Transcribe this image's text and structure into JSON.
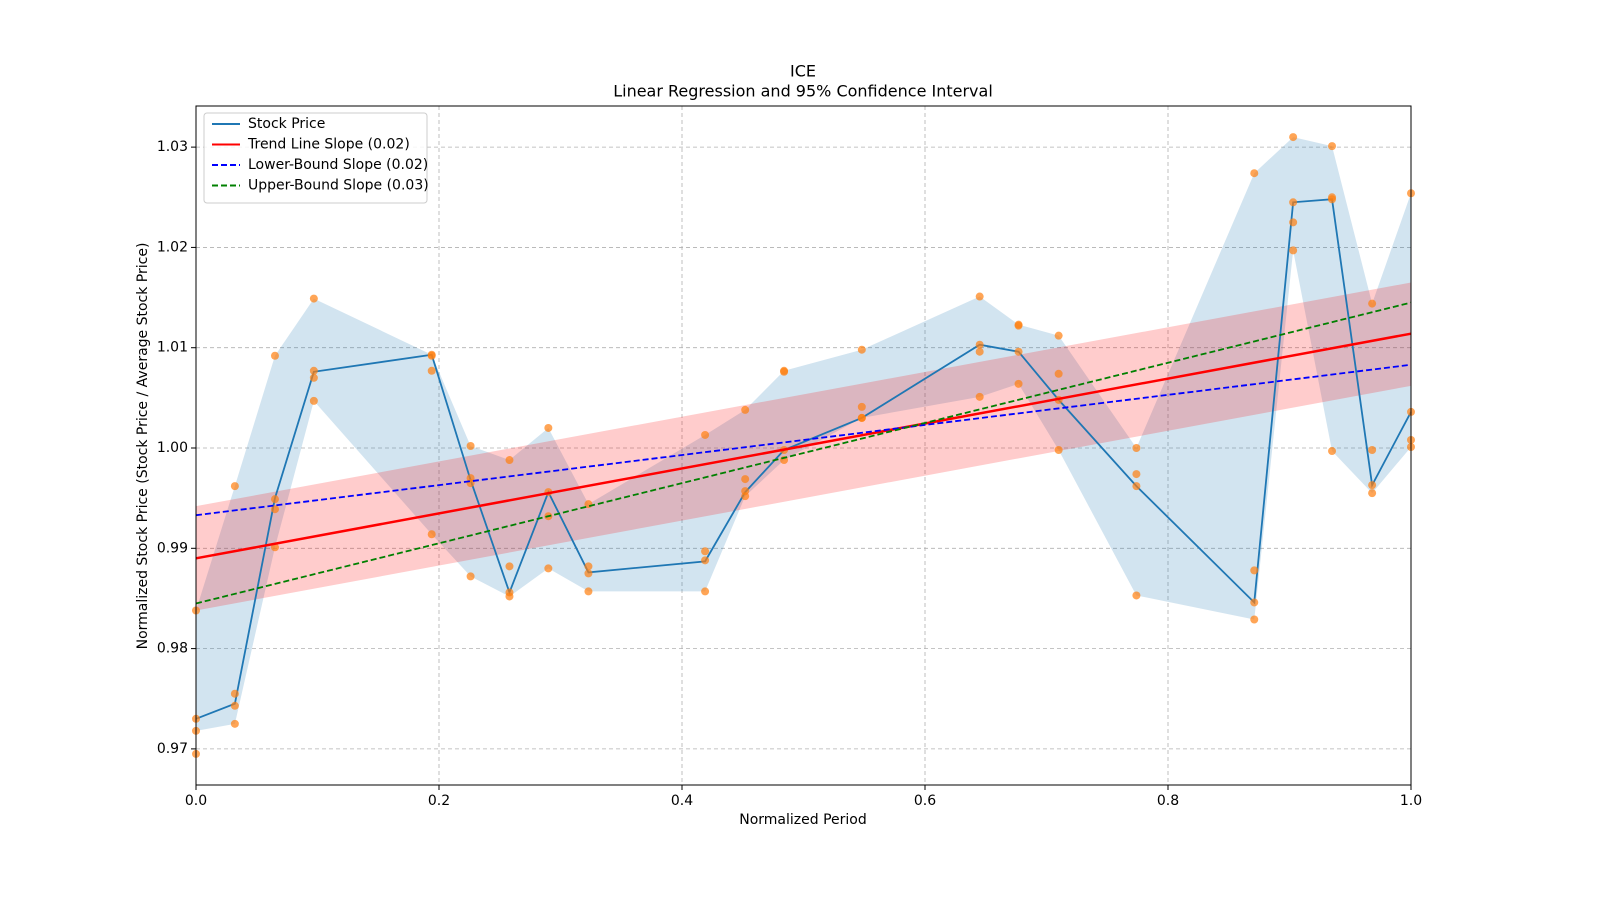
{
  "chart_data": {
    "type": "line",
    "title": "ICE",
    "subtitle": "Linear Regression and 95% Confidence Interval",
    "x_label": "Normalized Period",
    "y_label": "Normalized Stock Price (Stock Price / Average Stock Price)",
    "xlim": [
      0,
      1
    ],
    "ylim": [
      0.9664,
      1.0341
    ],
    "xticks": [
      {
        "value": 0,
        "label": "0.0"
      },
      0.2,
      0.4,
      0.6,
      0.8,
      {
        "value": 1,
        "label": "1.0"
      }
    ],
    "yticks": [
      0.97,
      0.98,
      0.99,
      {
        "value": 1.0,
        "label": "1.00"
      },
      1.01,
      1.02,
      1.03
    ],
    "grid": true,
    "legend": "upper left",
    "series": [
      {
        "name": "Stock Price",
        "color": "#1f77b4",
        "dash": false,
        "x": [
          0,
          0.032,
          0.065,
          0.097,
          0.194,
          0.226,
          0.258,
          0.29,
          0.323,
          0.419,
          0.452,
          0.484,
          0.548,
          0.645,
          0.677,
          0.71,
          0.774,
          0.871,
          0.903,
          0.935,
          0.968,
          1
        ],
        "values": [
          0.973,
          0.9745,
          0.995,
          1.0076,
          1.0093,
          0.9968,
          0.9856,
          0.9956,
          0.9876,
          0.9887,
          0.9956,
          0.9998,
          1.003,
          1.0103,
          1.0096,
          1.0048,
          0.9962,
          0.9846,
          1.0245,
          1.0248,
          0.9963,
          1.0036
        ],
        "upper": [
          0.9838,
          0.9962,
          1.0092,
          1.0149,
          1.0093,
          1.0002,
          0.9988,
          1.002,
          0.9944,
          1.0013,
          1.0038,
          1.0077,
          1.0098,
          1.0151,
          1.0123,
          1.0112,
          1.0,
          1.0274,
          1.031,
          1.0301,
          1.0144,
          1.0254
        ],
        "lower": [
          0.9718,
          0.9725,
          0.9901,
          1.0047,
          0.9914,
          0.9872,
          0.9852,
          0.988,
          0.9857,
          0.9857,
          0.9952,
          0.9988,
          1.003,
          1.0051,
          1.0064,
          0.9998,
          0.9853,
          0.9829,
          1.0197,
          0.9997,
          0.9955,
          1.0001
        ],
        "band_color": "#1f77b4"
      },
      {
        "name": "Trend Line Slope (0.02)",
        "color": "#ff0000",
        "dash": false,
        "width": 2.5,
        "x": [
          0,
          1
        ],
        "values": [
          0.989,
          1.0114
        ],
        "upper": [
          0.9942,
          1.0165
        ],
        "lower": [
          0.9838,
          1.0062
        ],
        "band_color": "#ff0000"
      },
      {
        "name": "Lower-Bound Slope (0.02)",
        "color": "#0000ff",
        "dash": true,
        "x": [
          0,
          1
        ],
        "values": [
          0.9933,
          1.0083
        ]
      },
      {
        "name": "Upper-Bound Slope (0.03)",
        "color": "#008000",
        "dash": true,
        "x": [
          0,
          1
        ],
        "values": [
          0.9845,
          1.0145
        ]
      }
    ],
    "scatter": {
      "color": "#ff7f0e",
      "x": [
        0,
        0.032,
        0.065,
        0.097,
        0.194,
        0.226,
        0.258,
        0.29,
        0.323,
        0.419,
        0.452,
        0.484,
        0.548,
        0.645,
        0.677,
        0.71,
        0.774,
        0.871,
        0.903,
        0.935,
        0.968,
        1
      ],
      "values": [
        [
          0.9838,
          0.973,
          0.9718,
          0.9695
        ],
        [
          0.9962,
          0.9755,
          0.9743,
          0.9725
        ],
        [
          1.0092,
          0.9949,
          0.9939,
          0.9901
        ],
        [
          1.0149,
          1.0077,
          1.007,
          1.0047
        ],
        [
          1.0093,
          1.0092,
          1.0077,
          0.9914
        ],
        [
          1.0002,
          0.997,
          0.9965,
          0.9872
        ],
        [
          0.9988,
          0.9882,
          0.9856,
          0.9852
        ],
        [
          1.002,
          0.9956,
          0.9932,
          0.988
        ],
        [
          0.9944,
          0.9882,
          0.9875,
          0.9857
        ],
        [
          1.0013,
          0.9897,
          0.9888,
          0.9857
        ],
        [
          1.0038,
          0.9969,
          0.9957,
          0.9952
        ],
        [
          1.0077,
          1.0076,
          0.9998,
          0.9988
        ],
        [
          1.0098,
          1.0041,
          1.003,
          1.003
        ],
        [
          1.0151,
          1.0103,
          1.0096,
          1.0051
        ],
        [
          1.0123,
          1.0122,
          1.0096,
          1.0064
        ],
        [
          1.0112,
          1.0074,
          1.0048,
          0.9998
        ],
        [
          1.0,
          0.9974,
          0.9962,
          0.9853
        ],
        [
          1.0274,
          0.9878,
          0.9846,
          0.9829
        ],
        [
          1.031,
          1.0245,
          1.0225,
          1.0197
        ],
        [
          1.0301,
          1.025,
          1.0248,
          0.9997
        ],
        [
          1.0144,
          0.9998,
          0.9963,
          0.9955
        ],
        [
          1.0254,
          1.0036,
          1.0008,
          1.0001
        ]
      ]
    }
  }
}
